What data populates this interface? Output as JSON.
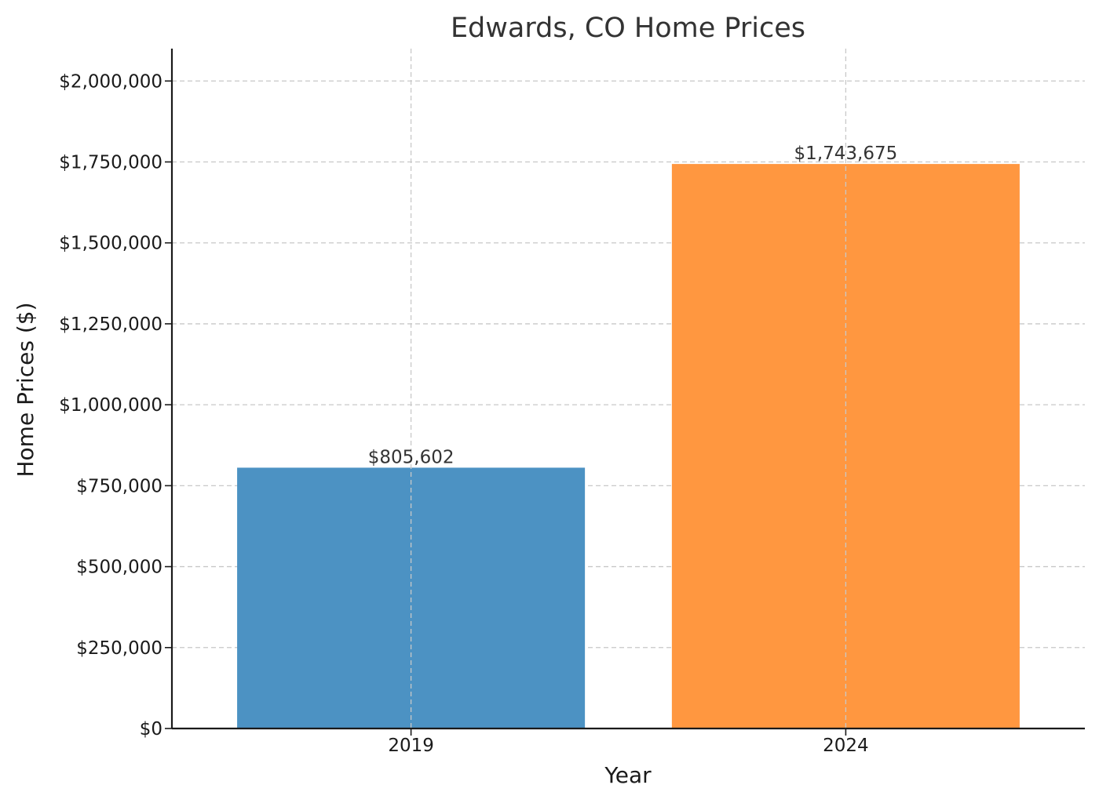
{
  "chart_data": {
    "type": "bar",
    "title": "Edwards, CO Home Prices",
    "xlabel": "Year",
    "ylabel": "Home Prices ($)",
    "categories": [
      "2019",
      "2024"
    ],
    "values": [
      805602,
      1743675
    ],
    "value_labels": [
      "$805,602",
      "$1,743,675"
    ],
    "colors": [
      "#4C92C3",
      "#FF9740"
    ],
    "ylim": [
      0,
      2100000
    ],
    "yticks": [
      0,
      250000,
      500000,
      750000,
      1000000,
      1250000,
      1500000,
      1750000,
      2000000
    ],
    "ytick_labels": [
      "$0",
      "$250,000",
      "$500,000",
      "$750,000",
      "$1,000,000",
      "$1,250,000",
      "$1,500,000",
      "$1,750,000",
      "$2,000,000"
    ],
    "grid": true,
    "legend": "none"
  }
}
